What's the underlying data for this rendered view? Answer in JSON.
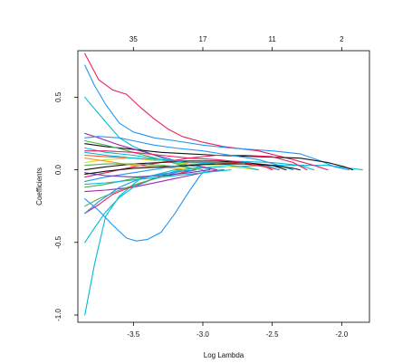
{
  "chart_data": {
    "type": "line",
    "title": "",
    "xlabel": "Log Lambda",
    "ylabel": "Coefficients",
    "xlim": [
      -3.9,
      -1.8
    ],
    "ylim": [
      -1.05,
      0.82
    ],
    "x_ticks": [
      {
        "value": -3.5,
        "label": "-3.5"
      },
      {
        "value": -3.0,
        "label": "-3.0"
      },
      {
        "value": -2.5,
        "label": "-2.5"
      },
      {
        "value": -2.0,
        "label": "-2.0"
      }
    ],
    "y_ticks": [
      {
        "value": -1.0,
        "label": "-1.0"
      },
      {
        "value": -0.5,
        "label": "-0.5"
      },
      {
        "value": 0.0,
        "label": "0.0"
      },
      {
        "value": 0.5,
        "label": "0.5"
      }
    ],
    "top_ticks": [
      {
        "value": -3.5,
        "label": "35"
      },
      {
        "value": -3.0,
        "label": "17"
      },
      {
        "value": -2.5,
        "label": "11"
      },
      {
        "value": -2.0,
        "label": "2"
      }
    ],
    "grid": false,
    "legend": "none",
    "series": [
      {
        "color": "#00bcd4",
        "points": [
          [
            -3.85,
            -1.0
          ],
          [
            -3.78,
            -0.65
          ],
          [
            -3.7,
            -0.32
          ],
          [
            -3.6,
            -0.18
          ],
          [
            -3.45,
            -0.06
          ],
          [
            -3.2,
            0.0
          ],
          [
            -2.9,
            0.02
          ],
          [
            -2.5,
            0.03
          ],
          [
            -2.1,
            0.03
          ],
          [
            -1.85,
            0.0
          ]
        ]
      },
      {
        "color": "#e91e63",
        "points": [
          [
            -3.85,
            0.8
          ],
          [
            -3.75,
            0.62
          ],
          [
            -3.65,
            0.55
          ],
          [
            -3.55,
            0.52
          ],
          [
            -3.45,
            0.43
          ],
          [
            -3.35,
            0.35
          ],
          [
            -3.25,
            0.28
          ],
          [
            -3.15,
            0.23
          ],
          [
            -3.0,
            0.19
          ],
          [
            -2.85,
            0.16
          ],
          [
            -2.6,
            0.13
          ],
          [
            -2.35,
            0.07
          ],
          [
            -2.2,
            0.03
          ],
          [
            -2.1,
            0.0
          ]
        ]
      },
      {
        "color": "#2196f3",
        "points": [
          [
            -3.85,
            0.72
          ],
          [
            -3.78,
            0.58
          ],
          [
            -3.7,
            0.45
          ],
          [
            -3.6,
            0.32
          ],
          [
            -3.5,
            0.26
          ],
          [
            -3.35,
            0.22
          ],
          [
            -3.2,
            0.2
          ],
          [
            -3.0,
            0.17
          ],
          [
            -2.8,
            0.15
          ],
          [
            -2.5,
            0.13
          ],
          [
            -2.3,
            0.11
          ],
          [
            -2.15,
            0.06
          ],
          [
            -2.05,
            0.02
          ],
          [
            -1.95,
            0.0
          ]
        ]
      },
      {
        "color": "#00bcd4",
        "points": [
          [
            -3.85,
            0.5
          ],
          [
            -3.78,
            0.42
          ],
          [
            -3.7,
            0.33
          ],
          [
            -3.6,
            0.22
          ],
          [
            -3.5,
            0.16
          ],
          [
            -3.35,
            0.1
          ],
          [
            -3.2,
            0.05
          ],
          [
            -3.05,
            0.02
          ],
          [
            -2.9,
            0.0
          ]
        ]
      },
      {
        "color": "#111111",
        "points": [
          [
            -3.85,
            0.18
          ],
          [
            -3.7,
            0.16
          ],
          [
            -3.5,
            0.14
          ],
          [
            -3.3,
            0.12
          ],
          [
            -3.1,
            0.11
          ],
          [
            -2.9,
            0.1
          ],
          [
            -2.6,
            0.09
          ],
          [
            -2.3,
            0.08
          ],
          [
            -2.1,
            0.05
          ],
          [
            -1.98,
            0.02
          ],
          [
            -1.92,
            0.0
          ]
        ]
      },
      {
        "color": "#4caf50",
        "points": [
          [
            -3.85,
            0.2
          ],
          [
            -3.7,
            0.17
          ],
          [
            -3.5,
            0.12
          ],
          [
            -3.3,
            0.07
          ],
          [
            -3.15,
            0.03
          ],
          [
            -3.05,
            0.0
          ]
        ]
      },
      {
        "color": "#ff5722",
        "points": [
          [
            -3.85,
            0.1
          ],
          [
            -3.7,
            0.09
          ],
          [
            -3.5,
            0.08
          ],
          [
            -3.3,
            0.06
          ],
          [
            -3.1,
            0.05
          ],
          [
            -2.9,
            0.05
          ],
          [
            -2.7,
            0.04
          ],
          [
            -2.55,
            0.02
          ],
          [
            -2.45,
            0.0
          ]
        ]
      },
      {
        "color": "#9c27b0",
        "points": [
          [
            -3.85,
            0.25
          ],
          [
            -3.75,
            0.22
          ],
          [
            -3.6,
            0.17
          ],
          [
            -3.45,
            0.13
          ],
          [
            -3.3,
            0.09
          ],
          [
            -3.15,
            0.05
          ],
          [
            -3.0,
            0.02
          ],
          [
            -2.9,
            0.0
          ]
        ]
      },
      {
        "color": "#cddc39",
        "points": [
          [
            -3.85,
            0.05
          ],
          [
            -3.7,
            0.07
          ],
          [
            -3.5,
            0.08
          ],
          [
            -3.3,
            0.06
          ],
          [
            -3.1,
            0.04
          ],
          [
            -2.9,
            0.03
          ],
          [
            -2.7,
            0.01
          ],
          [
            -2.6,
            0.0
          ]
        ]
      },
      {
        "color": "#00bcd4",
        "points": [
          [
            -3.85,
            0.12
          ],
          [
            -3.7,
            0.1
          ],
          [
            -3.5,
            0.08
          ],
          [
            -3.3,
            0.07
          ],
          [
            -3.1,
            0.06
          ],
          [
            -2.8,
            0.06
          ],
          [
            -2.5,
            0.05
          ],
          [
            -2.3,
            0.03
          ],
          [
            -2.2,
            0.0
          ]
        ]
      },
      {
        "color": "#e91e63",
        "points": [
          [
            -3.85,
            -0.05
          ],
          [
            -3.7,
            -0.02
          ],
          [
            -3.5,
            0.02
          ],
          [
            -3.3,
            0.05
          ],
          [
            -3.1,
            0.08
          ],
          [
            -2.9,
            0.1
          ],
          [
            -2.7,
            0.1
          ],
          [
            -2.5,
            0.09
          ],
          [
            -2.35,
            0.05
          ],
          [
            -2.25,
            0.0
          ]
        ]
      },
      {
        "color": "#2196f3",
        "points": [
          [
            -3.85,
            -0.08
          ],
          [
            -3.7,
            -0.05
          ],
          [
            -3.5,
            -0.02
          ],
          [
            -3.3,
            0.01
          ],
          [
            -3.1,
            0.03
          ],
          [
            -2.9,
            0.05
          ],
          [
            -2.7,
            0.05
          ],
          [
            -2.55,
            0.03
          ],
          [
            -2.45,
            0.0
          ]
        ]
      },
      {
        "color": "#111111",
        "points": [
          [
            -3.85,
            0.0
          ],
          [
            -3.7,
            0.02
          ],
          [
            -3.5,
            0.04
          ],
          [
            -3.3,
            0.05
          ],
          [
            -3.1,
            0.06
          ],
          [
            -2.9,
            0.06
          ],
          [
            -2.7,
            0.05
          ],
          [
            -2.5,
            0.03
          ],
          [
            -2.4,
            0.0
          ]
        ]
      },
      {
        "color": "#4caf50",
        "points": [
          [
            -3.85,
            -0.12
          ],
          [
            -3.7,
            -0.1
          ],
          [
            -3.5,
            -0.06
          ],
          [
            -3.3,
            -0.03
          ],
          [
            -3.15,
            -0.01
          ],
          [
            -3.05,
            0.0
          ]
        ]
      },
      {
        "color": "#9c27b0",
        "points": [
          [
            -3.85,
            -0.15
          ],
          [
            -3.7,
            -0.14
          ],
          [
            -3.5,
            -0.12
          ],
          [
            -3.3,
            -0.08
          ],
          [
            -3.1,
            -0.04
          ],
          [
            -2.95,
            -0.01
          ],
          [
            -2.85,
            0.0
          ]
        ]
      },
      {
        "color": "#2196f3",
        "points": [
          [
            -3.85,
            -0.2
          ],
          [
            -3.75,
            -0.28
          ],
          [
            -3.65,
            -0.38
          ],
          [
            -3.55,
            -0.47
          ],
          [
            -3.48,
            -0.49
          ],
          [
            -3.4,
            -0.48
          ],
          [
            -3.3,
            -0.43
          ],
          [
            -3.2,
            -0.3
          ],
          [
            -3.1,
            -0.15
          ],
          [
            -3.02,
            -0.04
          ],
          [
            -2.98,
            0.0
          ]
        ]
      },
      {
        "color": "#00bcd4",
        "points": [
          [
            -3.85,
            -0.5
          ],
          [
            -3.78,
            -0.4
          ],
          [
            -3.7,
            -0.29
          ],
          [
            -3.6,
            -0.19
          ],
          [
            -3.5,
            -0.12
          ],
          [
            -3.4,
            -0.08
          ],
          [
            -3.3,
            -0.04
          ],
          [
            -3.2,
            -0.01
          ],
          [
            -3.15,
            0.0
          ]
        ]
      },
      {
        "color": "#e91e63",
        "points": [
          [
            -3.85,
            -0.3
          ],
          [
            -3.75,
            -0.24
          ],
          [
            -3.65,
            -0.17
          ],
          [
            -3.5,
            -0.11
          ],
          [
            -3.35,
            -0.06
          ],
          [
            -3.2,
            -0.03
          ],
          [
            -3.1,
            -0.01
          ],
          [
            -3.05,
            0.0
          ]
        ]
      },
      {
        "color": "#4caf50",
        "points": [
          [
            -3.85,
            -0.25
          ],
          [
            -3.75,
            -0.2
          ],
          [
            -3.6,
            -0.14
          ],
          [
            -3.45,
            -0.09
          ],
          [
            -3.3,
            -0.05
          ],
          [
            -3.2,
            -0.02
          ],
          [
            -3.12,
            0.0
          ]
        ]
      },
      {
        "color": "#ff9800",
        "points": [
          [
            -3.85,
            0.08
          ],
          [
            -3.7,
            0.06
          ],
          [
            -3.5,
            0.03
          ],
          [
            -3.35,
            0.02
          ],
          [
            -3.2,
            0.01
          ],
          [
            -3.1,
            0.0
          ]
        ]
      },
      {
        "color": "#2196f3",
        "points": [
          [
            -3.85,
            0.22
          ],
          [
            -3.75,
            0.23
          ],
          [
            -3.6,
            0.22
          ],
          [
            -3.5,
            0.2
          ],
          [
            -3.35,
            0.17
          ],
          [
            -3.2,
            0.15
          ],
          [
            -3.0,
            0.13
          ],
          [
            -2.8,
            0.1
          ],
          [
            -2.6,
            0.07
          ],
          [
            -2.45,
            0.03
          ],
          [
            -2.35,
            0.0
          ]
        ]
      },
      {
        "color": "#673ab7",
        "points": [
          [
            -3.85,
            -0.02
          ],
          [
            -3.7,
            -0.04
          ],
          [
            -3.5,
            -0.05
          ],
          [
            -3.3,
            -0.04
          ],
          [
            -3.1,
            -0.02
          ],
          [
            -2.95,
            0.0
          ]
        ]
      },
      {
        "color": "#00bcd4",
        "points": [
          [
            -3.85,
            0.15
          ],
          [
            -3.7,
            0.12
          ],
          [
            -3.5,
            0.1
          ],
          [
            -3.3,
            0.07
          ],
          [
            -3.1,
            0.05
          ],
          [
            -2.9,
            0.04
          ],
          [
            -2.7,
            0.02
          ],
          [
            -2.6,
            0.0
          ]
        ]
      },
      {
        "color": "#111111",
        "points": [
          [
            -3.85,
            -0.03
          ],
          [
            -3.7,
            -0.01
          ],
          [
            -3.5,
            0.01
          ],
          [
            -3.3,
            0.02
          ],
          [
            -3.1,
            0.03
          ],
          [
            -2.9,
            0.04
          ],
          [
            -2.7,
            0.04
          ],
          [
            -2.5,
            0.03
          ],
          [
            -2.35,
            0.01
          ],
          [
            -2.3,
            0.0
          ]
        ]
      },
      {
        "color": "#e91e63",
        "points": [
          [
            -3.85,
            0.13
          ],
          [
            -3.7,
            0.13
          ],
          [
            -3.5,
            0.12
          ],
          [
            -3.3,
            0.1
          ],
          [
            -3.1,
            0.08
          ],
          [
            -2.9,
            0.07
          ],
          [
            -2.7,
            0.05
          ],
          [
            -2.55,
            0.02
          ],
          [
            -2.5,
            0.0
          ]
        ]
      },
      {
        "color": "#2196f3",
        "points": [
          [
            -3.85,
            -0.3
          ],
          [
            -3.75,
            -0.22
          ],
          [
            -3.6,
            -0.12
          ],
          [
            -3.45,
            -0.06
          ],
          [
            -3.3,
            -0.03
          ],
          [
            -3.15,
            -0.01
          ],
          [
            -3.05,
            0.0
          ]
        ]
      },
      {
        "color": "#4caf50",
        "points": [
          [
            -3.85,
            0.03
          ],
          [
            -3.7,
            0.04
          ],
          [
            -3.5,
            0.04
          ],
          [
            -3.3,
            0.03
          ],
          [
            -3.15,
            0.02
          ],
          [
            -3.0,
            0.0
          ]
        ]
      },
      {
        "color": "#00bcd4",
        "points": [
          [
            -3.85,
            -0.1
          ],
          [
            -3.7,
            -0.09
          ],
          [
            -3.5,
            -0.07
          ],
          [
            -3.3,
            -0.05
          ],
          [
            -3.1,
            -0.03
          ],
          [
            -2.9,
            -0.01
          ],
          [
            -2.8,
            0.0
          ]
        ]
      }
    ]
  }
}
